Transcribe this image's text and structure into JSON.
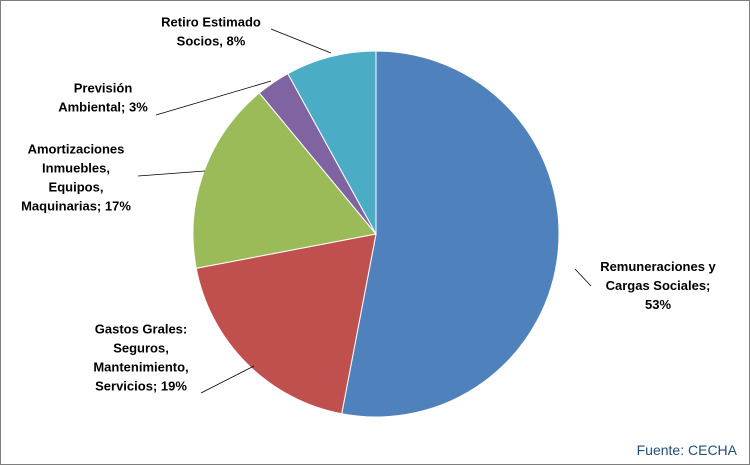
{
  "chart_data": {
    "type": "pie",
    "title": "",
    "start_angle_deg": 0,
    "direction": "clockwise",
    "slices": [
      {
        "name": "Remuneraciones y Cargas Sociales",
        "value": 53,
        "label_lines": [
          "Remuneraciones y",
          "Cargas Sociales;",
          "53%"
        ],
        "color": "#4f81bd"
      },
      {
        "name": "Gastos Grales: Seguros, Mantenimiento, Servicios",
        "value": 19,
        "label_lines": [
          "Gastos Grales:",
          "Seguros,",
          "Mantenimiento,",
          "Servicios; 19%"
        ],
        "color": "#c0504d"
      },
      {
        "name": "Amortizaciones Inmuebles, Equipos, Maquinarias",
        "value": 17,
        "label_lines": [
          "Amortizaciones",
          "Inmuebles,",
          "Equipos,",
          "Maquinarias;  17%"
        ],
        "color": "#9bbb59"
      },
      {
        "name": "Previsión Ambiental",
        "value": 3,
        "label_lines": [
          "Previsión",
          "Ambiental; 3%"
        ],
        "color": "#8064a2"
      },
      {
        "name": "Retiro Estimado Socios",
        "value": 8,
        "label_lines": [
          "Retiro Estimado",
          "Socios, 8%"
        ],
        "color": "#4bacc6"
      }
    ]
  },
  "source": "Fuente: CECHA"
}
